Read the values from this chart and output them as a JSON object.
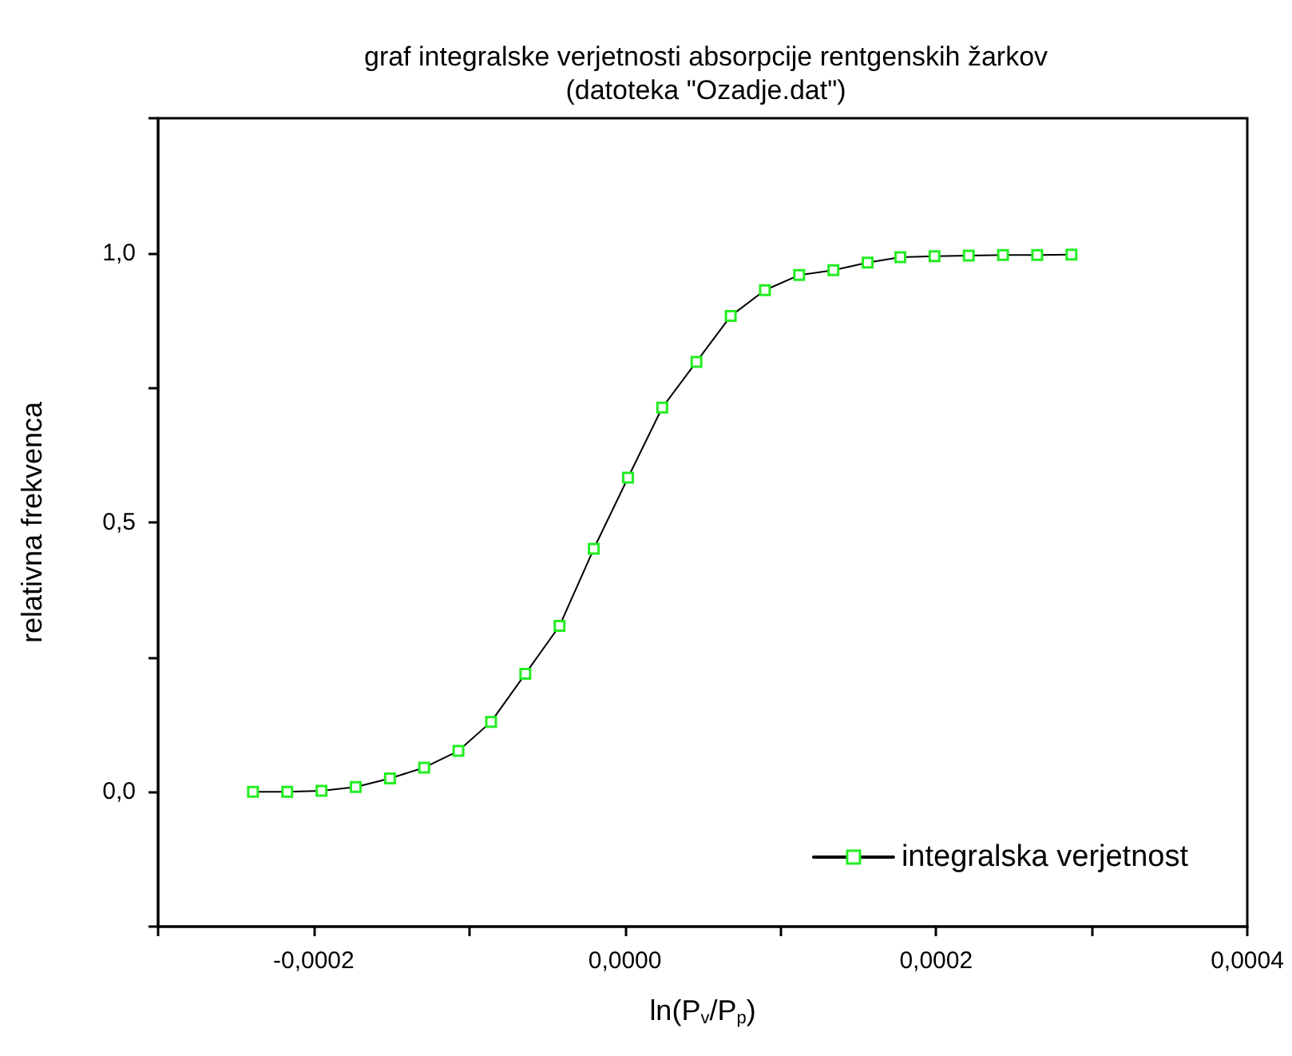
{
  "chart_data": {
    "type": "line",
    "title": "graf integralske verjetnosti absorpcije rentgenskih žarkov\n(datoteka \"Ozadje.dat\")",
    "xlabel": "ln(P$_{v}$/P$_{p}$)",
    "ylabel": "relativna frekvenca",
    "x": [
      -0.000239,
      -0.000217,
      -0.000195,
      -0.000173,
      -0.000151,
      -0.000129,
      -0.000107,
      -8.6e-05,
      -6.4e-05,
      -4.2e-05,
      -2e-05,
      2e-06,
      2.4e-05,
      4.6e-05,
      6.8e-05,
      9e-05,
      0.000112,
      0.000134,
      0.000156,
      0.000177,
      0.000199,
      0.000221,
      0.000243,
      0.000265,
      0.000287
    ],
    "series": [
      {
        "name": "integralska verjetnost",
        "color": "#000000",
        "values": [
          0,
          0,
          0.002,
          0.009,
          0.025,
          0.045,
          0.076,
          0.13,
          0.219,
          0.308,
          0.451,
          0.583,
          0.713,
          0.798,
          0.883,
          0.931,
          0.959,
          0.968,
          0.982,
          0.992,
          0.994,
          0.995,
          0.996,
          0.996,
          0.997
        ]
      }
    ],
    "xlim": [
      -0.0003,
      0.0004
    ],
    "xticks": [
      {
        "value": -0.0003,
        "label": null
      },
      {
        "value": -0.0002,
        "label": "-0,0002"
      },
      {
        "value": -0.0001,
        "label": null
      },
      {
        "value": 0,
        "label": "0,0000"
      },
      {
        "value": 0.0001,
        "label": null
      },
      {
        "value": 0.0002,
        "label": "0,0002"
      },
      {
        "value": 0.0003,
        "label": null
      },
      {
        "value": 0.0004,
        "label": "0,0004"
      }
    ],
    "ylim": [
      -0.25,
      1.25
    ],
    "yticks": [
      {
        "value": -0.25,
        "label": null
      },
      {
        "value": 0,
        "label": "0,0"
      },
      {
        "value": 0.25,
        "label": null
      },
      {
        "value": 0.5,
        "label": "0,5"
      },
      {
        "value": 0.75,
        "label": null
      },
      {
        "value": 1,
        "label": "1,0"
      },
      {
        "value": 1.25,
        "label": null
      }
    ],
    "grid": false,
    "legend": "bottom right",
    "marker": "square",
    "line_style": "solid"
  }
}
